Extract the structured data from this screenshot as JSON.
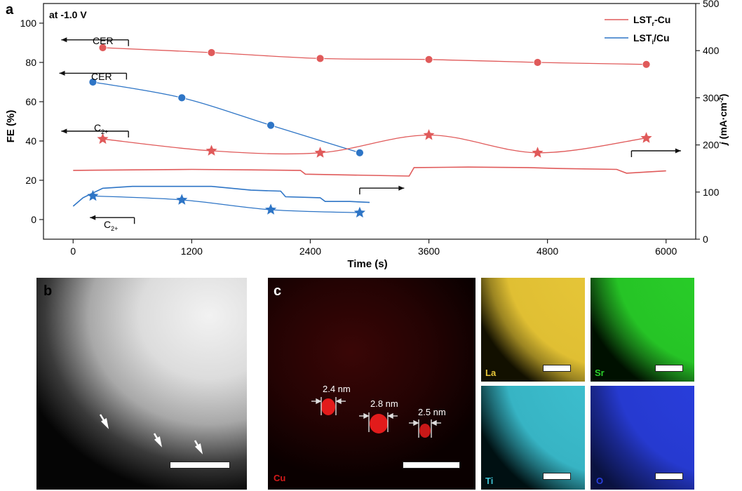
{
  "panel_a": {
    "letter": "a",
    "condition": "at -1.0 V",
    "legend": [
      {
        "name": "LST_r-Cu",
        "base": "LST",
        "sub": "r",
        "rest": "-Cu",
        "color": "#e05a5a"
      },
      {
        "name": "LST_i/Cu",
        "base": "LST",
        "sub": "i",
        "rest": "/Cu",
        "color": "#2e75c6"
      }
    ],
    "arrow_labels": {
      "cer1": "CER",
      "cer2": "CER",
      "c2_red": {
        "base": "C",
        "sub": "2+"
      },
      "c2_blue": {
        "base": "C",
        "sub": "2+"
      }
    }
  },
  "chart_data": {
    "type": "line",
    "title": "",
    "xlabel": "Time (s)",
    "ylabel": "FE (%)",
    "ylabel_right": {
      "prefix": "j",
      "units": "(mA·cm",
      "sup": "-2",
      "close": ")"
    },
    "xlim": [
      -300,
      6300
    ],
    "ylim": [
      -10,
      110
    ],
    "y2lim": [
      0,
      500
    ],
    "xticks": [
      0,
      1200,
      2400,
      3600,
      4800,
      6000
    ],
    "yticks": [
      0,
      20,
      40,
      60,
      80,
      100
    ],
    "y2ticks": [
      0,
      100,
      200,
      300,
      400,
      500
    ],
    "grid": false,
    "legend_position": "top-right",
    "series": [
      {
        "name": "LST_r-Cu CER FE",
        "color": "#e05a5a",
        "marker": "circle",
        "x": [
          300,
          1400,
          2500,
          3600,
          4700,
          5800
        ],
        "y": [
          87.5,
          85,
          82,
          81.5,
          80,
          79
        ]
      },
      {
        "name": "LST_i/Cu CER FE",
        "color": "#2e75c6",
        "marker": "circle",
        "x": [
          200,
          1100,
          2000,
          2900
        ],
        "y": [
          70,
          62,
          48,
          34
        ]
      },
      {
        "name": "LST_r-Cu C2+ FE",
        "color": "#e05a5a",
        "marker": "star",
        "x": [
          300,
          1400,
          2500,
          3600,
          4700,
          5800
        ],
        "y": [
          41,
          35,
          34,
          43,
          34,
          41.5
        ]
      },
      {
        "name": "LST_i/Cu C2+ FE",
        "color": "#2e75c6",
        "marker": "star",
        "x": [
          200,
          1100,
          2000,
          2900
        ],
        "y": [
          12,
          10,
          5,
          3.5
        ]
      },
      {
        "name": "LST_r-Cu current density",
        "axis": "right",
        "color": "#e05a5a",
        "marker": "none",
        "x": [
          0,
          600,
          1200,
          1800,
          2300,
          2350,
          3400,
          3450,
          4000,
          4600,
          4900,
          5500,
          5600,
          6000
        ],
        "y": [
          146,
          147,
          148,
          147,
          146,
          138,
          134,
          152,
          153,
          152,
          150,
          148,
          140,
          145
        ]
      },
      {
        "name": "LST_i/Cu current density",
        "axis": "right",
        "color": "#2e75c6",
        "marker": "none",
        "x": [
          0,
          100,
          300,
          600,
          1000,
          1400,
          1800,
          2100,
          2150,
          2500,
          2550,
          2800,
          3000
        ],
        "y": [
          70,
          88,
          108,
          112,
          112,
          112,
          104,
          102,
          90,
          88,
          80,
          80,
          78
        ]
      }
    ],
    "arrows": [
      {
        "target": "left",
        "x_from": 560,
        "x_to": -120,
        "y": 91.5
      },
      {
        "target": "left",
        "x_from": 540,
        "x_to": -140,
        "y": 74.5
      },
      {
        "target": "left",
        "x_from": 560,
        "x_to": -120,
        "y": 45
      },
      {
        "target": "left",
        "x_from": 620,
        "x_to": 170,
        "y": 1
      },
      {
        "target": "right",
        "x_from": 2900,
        "x_to": 3350,
        "y": 16
      },
      {
        "target": "right",
        "x_from": 5650,
        "x_to": 6150,
        "y": 35
      }
    ]
  },
  "panel_b": {
    "letter": "b"
  },
  "panel_c": {
    "letter": "c",
    "cu_label": "Cu",
    "sizes": [
      "2.4 nm",
      "2.8 nm",
      "2.5 nm"
    ],
    "maps": [
      {
        "label": "La",
        "color": "#e8c83a"
      },
      {
        "label": "Sr",
        "color": "#2ad02a"
      },
      {
        "label": "Ti",
        "color": "#3fc2d2"
      },
      {
        "label": "O",
        "color": "#2a3fe0"
      }
    ]
  }
}
